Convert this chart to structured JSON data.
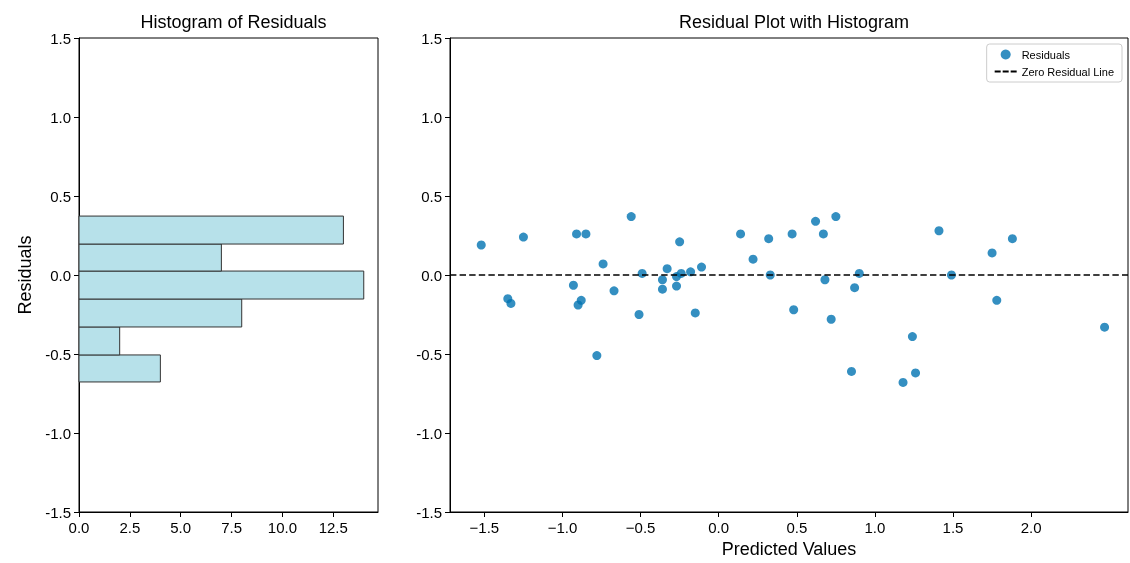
{
  "chart_data": [
    {
      "type": "histogram",
      "title": "Histogram of Residuals",
      "ylabel": "Residuals",
      "orientation": "horizontal",
      "color": "#b7e1ea",
      "bins": [
        -0.677,
        -0.506,
        -0.329,
        -0.152,
        0.025,
        0.196,
        0.373
      ],
      "values": [
        4,
        2,
        8,
        14,
        7,
        13
      ],
      "xlim": [
        0,
        14.7
      ],
      "xticks": [
        {
          "value": 0,
          "label": "0.0"
        },
        {
          "value": 2.5,
          "label": "2.5"
        },
        {
          "value": 5,
          "label": "5.0"
        },
        {
          "value": 7.5,
          "label": "7.5"
        },
        {
          "value": 10,
          "label": "10.0"
        },
        {
          "value": 12.5,
          "label": "12.5"
        }
      ],
      "ylim": [
        -1.5,
        1.5
      ],
      "yticks": [
        {
          "value": -1.5,
          "label": "-1.5"
        },
        {
          "value": -1,
          "label": "-1.0"
        },
        {
          "value": -0.5,
          "label": "-0.5"
        },
        {
          "value": 0,
          "label": "0.0"
        },
        {
          "value": 0.5,
          "label": "0.5"
        },
        {
          "value": 1,
          "label": "1.0"
        },
        {
          "value": 1.5,
          "label": "1.5"
        }
      ],
      "grid": false
    },
    {
      "type": "scatter",
      "title": "Residual Plot with Histogram",
      "xlabel": "Predicted Values",
      "legend": "top right",
      "grid": false,
      "xlim": [
        -1.72,
        2.62
      ],
      "xticks": [
        {
          "value": -1.5,
          "label": "−1.5"
        },
        {
          "value": -1,
          "label": "−1.0"
        },
        {
          "value": -0.5,
          "label": "−0.5"
        },
        {
          "value": 0,
          "label": "0.0"
        },
        0.5,
        {
          "value": 1,
          "label": "1.0"
        },
        1.5,
        {
          "value": 2,
          "label": "2.0"
        }
      ],
      "ylim": [
        -1.5,
        1.5
      ],
      "yticks": [
        {
          "value": -1.5,
          "label": "-1.5"
        },
        {
          "value": -1,
          "label": "-1.0"
        },
        {
          "value": -0.5,
          "label": "-0.5"
        },
        {
          "value": 0,
          "label": "0.0"
        },
        0.5,
        {
          "value": 1,
          "label": "1.0"
        },
        1.5
      ],
      "series": [
        {
          "name": "Residuals",
          "type": "scatter",
          "marker": "circle",
          "color": "#0173b2",
          "x": [
            -1.52,
            -1.35,
            -1.33,
            -1.25,
            -0.93,
            -0.91,
            -0.85,
            -0.88,
            -0.9,
            -0.78,
            -0.74,
            -0.67,
            -0.56,
            -0.51,
            -0.49,
            -0.36,
            -0.36,
            -0.33,
            -0.27,
            -0.27,
            -0.25,
            -0.24,
            -0.18,
            -0.15,
            -0.11,
            0.14,
            0.22,
            0.32,
            0.33,
            0.47,
            0.48,
            0.62,
            0.67,
            0.75,
            0.68,
            0.72,
            0.9,
            0.87,
            0.85,
            1.24,
            1.26,
            1.18,
            1.41,
            1.49,
            1.75,
            1.88,
            1.78,
            2.47
          ],
          "values": [
            0.19,
            -0.15,
            -0.18,
            0.24,
            -0.065,
            0.26,
            0.26,
            -0.16,
            -0.19,
            -0.51,
            0.07,
            -0.1,
            0.37,
            -0.25,
            0.01,
            -0.03,
            -0.09,
            0.04,
            -0.01,
            -0.07,
            0.21,
            0.01,
            0.02,
            -0.24,
            0.05,
            0.26,
            0.1,
            0.23,
            0,
            0.26,
            -0.22,
            0.34,
            0.26,
            0.37,
            -0.03,
            -0.28,
            0.01,
            -0.08,
            -0.61,
            -0.39,
            -0.62,
            -0.68,
            0.28,
            0,
            0.14,
            0.23,
            -0.16,
            -0.33
          ]
        },
        {
          "name": "Zero Residual Line",
          "type": "line",
          "marker": "none",
          "line_style": "dashed",
          "color": "#000000",
          "x": [
            -1.72,
            2.62
          ],
          "values": [
            0,
            0
          ]
        }
      ]
    }
  ]
}
